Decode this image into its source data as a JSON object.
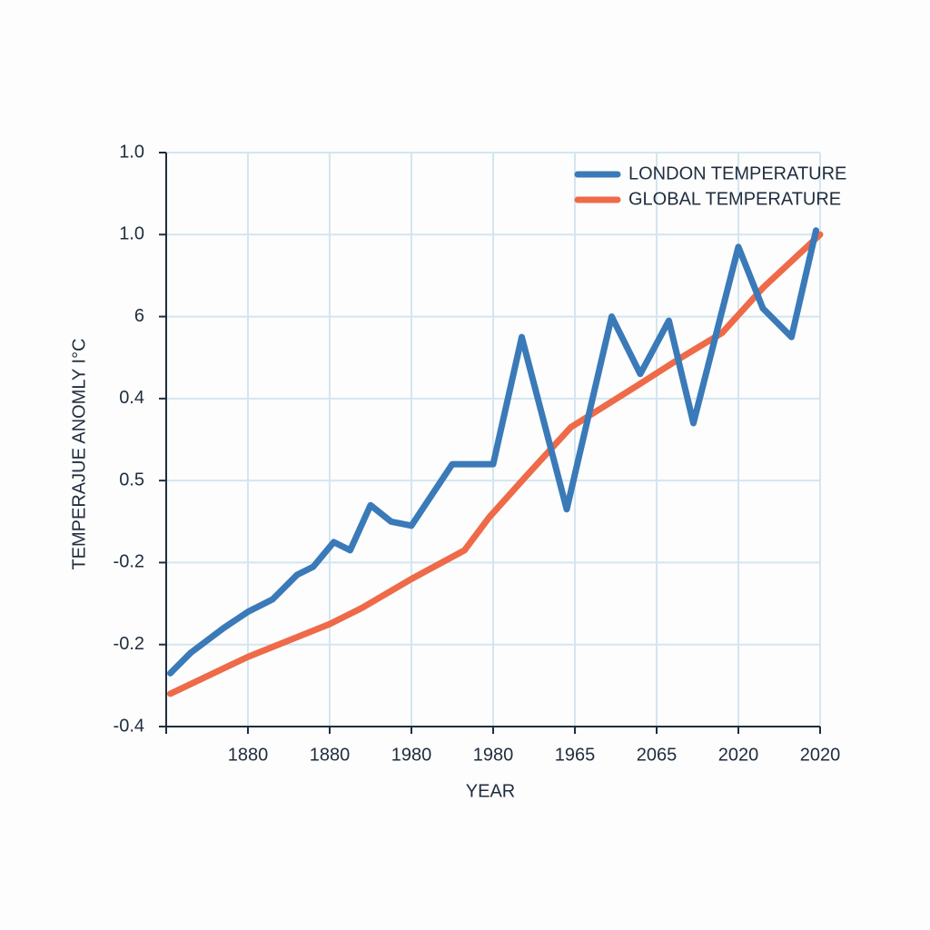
{
  "chart_data": {
    "type": "line",
    "xlabel": "YEAR",
    "ylabel": "TEMPERAJUE ANOMLY I°C",
    "xlim": [
      1860,
      2020
    ],
    "xticks": [
      1880,
      {
        "value": 1900,
        "label": "1880"
      },
      {
        "value": 1920,
        "label": "1980"
      },
      {
        "value": 1940,
        "label": "1980"
      },
      {
        "value": 1960,
        "label": "1965"
      },
      {
        "value": 1980,
        "label": "2065"
      },
      {
        "value": 2000,
        "label": "2020"
      },
      2020
    ],
    "ylim": [
      -0.4,
      1.0
    ],
    "yticks": [
      -0.4,
      -0.2,
      {
        "value": 0,
        "label": "-0.2"
      },
      {
        "value": 0.2,
        "label": "0.5"
      },
      0.4,
      {
        "value": 0.6,
        "label": "6"
      },
      {
        "value": 0.8,
        "label": "1.0"
      },
      {
        "value": 1.0,
        "label": "1.0"
      }
    ],
    "grid": true,
    "legend": "upper right",
    "series": [
      {
        "name": "LONDON TEMPERATURE",
        "color": "#3a7ab8",
        "x": [
          1861,
          1866,
          1874,
          1880,
          1886,
          1892,
          1896,
          1901,
          1905,
          1910,
          1915,
          1920,
          1930,
          1940,
          1947,
          1958,
          1969,
          1976,
          1983,
          1989,
          2000,
          2006,
          2013,
          2019
        ],
        "values": [
          -0.27,
          -0.22,
          -0.16,
          -0.12,
          -0.09,
          -0.03,
          -0.01,
          0.05,
          0.03,
          0.14,
          0.1,
          0.09,
          0.24,
          0.24,
          0.55,
          0.13,
          0.6,
          0.46,
          0.59,
          0.34,
          0.77,
          0.62,
          0.55,
          0.81
        ]
      },
      {
        "name": "GLOBAL TEMPERATURE",
        "color": "#ee6a48",
        "x": [
          1861,
          1880,
          1900,
          1908,
          1920,
          1933,
          1939,
          1948,
          1959,
          1975,
          1986,
          1996,
          2006,
          2020
        ],
        "values": [
          -0.32,
          -0.23,
          -0.15,
          -0.11,
          -0.04,
          0.03,
          0.11,
          0.21,
          0.33,
          0.43,
          0.5,
          0.56,
          0.67,
          0.8
        ]
      }
    ]
  }
}
